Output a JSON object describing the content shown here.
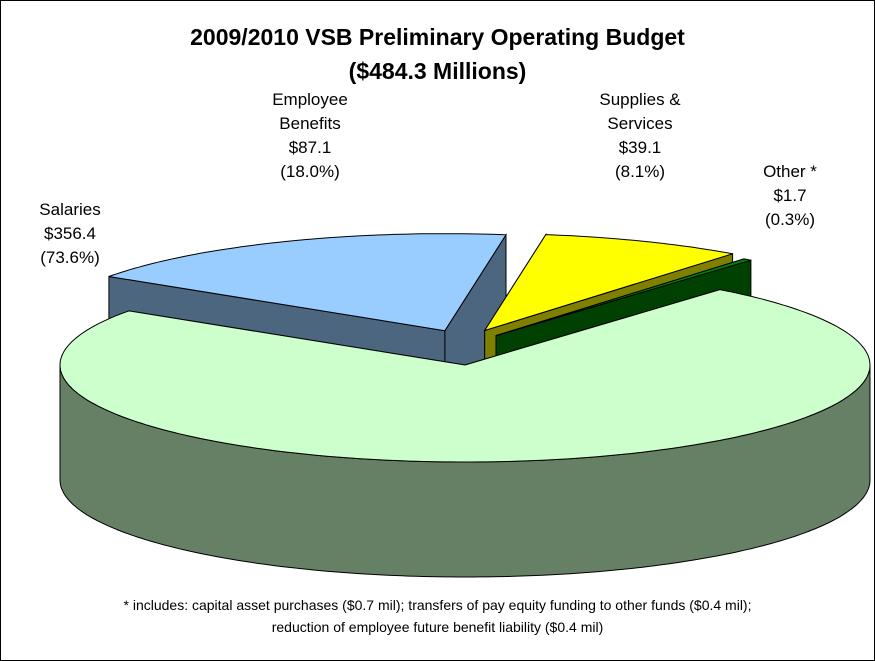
{
  "chart_data": {
    "type": "pie3d",
    "title": "2009/2010 VSB Preliminary Operating Budget",
    "subtitle": "($484.3 Millions)",
    "categories": [
      "Salaries",
      "Employee\nBenefits",
      "Supplies &\nServices",
      "Other *"
    ],
    "values": [
      356.4,
      87.1,
      39.1,
      1.7
    ],
    "value_labels": [
      "$356.4",
      "$87.1",
      "$39.1",
      "$1.7"
    ],
    "percentages": [
      73.6,
      18.0,
      8.1,
      0.3
    ],
    "percentage_labels": [
      "(73.6%)",
      "(18.0%)",
      "(8.1%)",
      "(0.3%)"
    ],
    "colors": [
      "#ccffcc",
      "#99ccff",
      "#ffff00",
      "#008000"
    ],
    "exploded": [
      false,
      true,
      true,
      true
    ],
    "footnote": [
      "* includes: capital asset purchases ($0.7 mil); transfers of pay equity funding to other funds ($0.4 mil);",
      "reduction of employee future benefit liability ($0.4 mil)"
    ]
  }
}
